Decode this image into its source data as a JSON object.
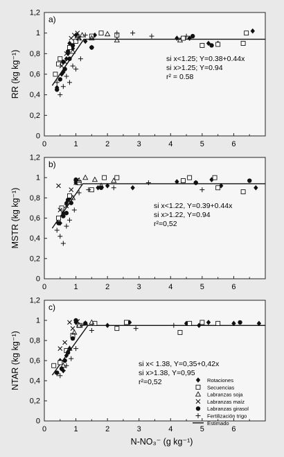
{
  "chart_data": [
    {
      "type": "scatter",
      "panel_label": "a)",
      "ylabel": "RR (kg kg⁻¹)",
      "xlim": [
        0,
        7
      ],
      "ylim": [
        0,
        1.2
      ],
      "x_ticks": [
        0,
        1,
        2,
        3,
        4,
        5,
        6
      ],
      "y_ticks": [
        "0",
        "0,2",
        "0,4",
        "0,6",
        "0,8",
        "1",
        "1,2"
      ],
      "annotation": [
        "si x<1.25; Y=0.38+0.44x",
        "si x>1.25; Y=0.94",
        "r² = 0.58"
      ],
      "fit": {
        "breakpoint": 1.25,
        "intercept": 0.38,
        "slope": 0.44,
        "plateau": 0.94
      },
      "series": [
        {
          "marker": "diamond",
          "points": [
            [
              0.4,
              0.47
            ],
            [
              0.55,
              0.6
            ],
            [
              0.6,
              0.62
            ],
            [
              0.7,
              0.75
            ],
            [
              0.75,
              0.8
            ],
            [
              0.8,
              0.9
            ],
            [
              0.9,
              0.85
            ],
            [
              1.0,
              0.98
            ],
            [
              1.3,
              0.92
            ],
            [
              1.6,
              0.98
            ],
            [
              4.2,
              0.95
            ],
            [
              4.6,
              0.95
            ],
            [
              5.2,
              0.9
            ],
            [
              5.5,
              0.9
            ],
            [
              6.6,
              1.02
            ]
          ]
        },
        {
          "marker": "square",
          "points": [
            [
              0.35,
              0.6
            ],
            [
              0.45,
              0.7
            ],
            [
              0.5,
              0.75
            ],
            [
              0.8,
              0.86
            ],
            [
              1.0,
              0.92
            ],
            [
              1.5,
              0.97
            ],
            [
              1.8,
              1.0
            ],
            [
              2.3,
              0.98
            ],
            [
              4.4,
              0.95
            ],
            [
              5.0,
              0.88
            ],
            [
              5.5,
              0.89
            ],
            [
              6.3,
              0.9
            ],
            [
              6.4,
              1.0
            ]
          ]
        },
        {
          "marker": "triangle",
          "points": [
            [
              0.9,
              0.82
            ],
            [
              1.05,
              0.97
            ],
            [
              1.1,
              0.95
            ],
            [
              1.2,
              0.98
            ],
            [
              1.5,
              0.95
            ],
            [
              2.0,
              0.99
            ],
            [
              2.3,
              0.93
            ],
            [
              4.3,
              0.93
            ]
          ]
        },
        {
          "marker": "cross",
          "points": [
            [
              0.55,
              0.68
            ],
            [
              0.65,
              0.72
            ],
            [
              0.7,
              0.8
            ],
            [
              0.85,
              0.95
            ],
            [
              0.95,
              0.98
            ],
            [
              1.05,
              1.0
            ],
            [
              1.1,
              0.95
            ]
          ]
        },
        {
          "marker": "circle",
          "points": [
            [
              0.4,
              0.45
            ],
            [
              0.5,
              0.55
            ],
            [
              0.6,
              0.72
            ],
            [
              0.65,
              0.65
            ],
            [
              0.75,
              0.82
            ],
            [
              0.8,
              0.75
            ],
            [
              0.9,
              0.88
            ],
            [
              1.5,
              0.86
            ],
            [
              4.7,
              0.97
            ],
            [
              5.3,
              0.88
            ]
          ]
        },
        {
          "marker": "plus",
          "points": [
            [
              0.4,
              0.52
            ],
            [
              0.5,
              0.4
            ],
            [
              0.6,
              0.48
            ],
            [
              0.7,
              0.58
            ],
            [
              0.8,
              0.52
            ],
            [
              0.9,
              0.68
            ],
            [
              1.0,
              0.65
            ],
            [
              1.15,
              0.75
            ],
            [
              1.3,
              0.98
            ],
            [
              1.5,
              0.86
            ],
            [
              2.3,
              1.0
            ],
            [
              2.8,
              1.0
            ],
            [
              3.4,
              0.97
            ],
            [
              4.5,
              0.97
            ]
          ]
        }
      ]
    },
    {
      "type": "scatter",
      "panel_label": "b)",
      "ylabel": "MSTR (kg kg⁻¹)",
      "xlim": [
        0,
        7
      ],
      "ylim": [
        0,
        1.2
      ],
      "x_ticks": [
        0,
        1,
        2,
        3,
        4,
        5,
        6
      ],
      "y_ticks": [
        "0",
        "0,2",
        "0,4",
        "0,6",
        "0,8",
        "1",
        "1,2"
      ],
      "annotation": [
        "si x<1.22, Y=0.39+0.44x",
        "si x>1.22, Y=0.94",
        "r²=0,52"
      ],
      "fit": {
        "breakpoint": 1.22,
        "intercept": 0.39,
        "slope": 0.44,
        "plateau": 0.94
      },
      "series": [
        {
          "marker": "diamond",
          "points": [
            [
              0.5,
              0.55
            ],
            [
              0.6,
              0.65
            ],
            [
              0.7,
              0.75
            ],
            [
              0.8,
              0.8
            ],
            [
              1.0,
              0.95
            ],
            [
              1.7,
              0.9
            ],
            [
              2.0,
              0.92
            ],
            [
              2.8,
              0.9
            ],
            [
              4.2,
              0.96
            ],
            [
              4.8,
              0.95
            ],
            [
              5.3,
              0.98
            ],
            [
              5.6,
              0.92
            ],
            [
              6.7,
              0.9
            ]
          ]
        },
        {
          "marker": "square",
          "points": [
            [
              0.45,
              0.6
            ],
            [
              0.55,
              0.7
            ],
            [
              0.8,
              0.82
            ],
            [
              1.1,
              0.95
            ],
            [
              1.5,
              0.88
            ],
            [
              1.9,
              1.0
            ],
            [
              2.3,
              1.0
            ],
            [
              4.4,
              0.97
            ],
            [
              4.6,
              1.0
            ],
            [
              5.4,
              1.0
            ],
            [
              5.5,
              0.9
            ],
            [
              6.3,
              0.86
            ]
          ]
        },
        {
          "marker": "triangle",
          "points": [
            [
              0.9,
              0.8
            ],
            [
              1.1,
              0.97
            ],
            [
              1.3,
              1.0
            ],
            [
              1.6,
              0.98
            ],
            [
              1.8,
              0.92
            ],
            [
              2.2,
              0.97
            ]
          ]
        },
        {
          "marker": "cross",
          "points": [
            [
              0.45,
              0.92
            ],
            [
              0.5,
              0.68
            ],
            [
              0.7,
              0.72
            ],
            [
              0.85,
              0.88
            ],
            [
              1.0,
              0.95
            ],
            [
              1.05,
              0.98
            ]
          ]
        },
        {
          "marker": "circle",
          "points": [
            [
              0.45,
              0.55
            ],
            [
              0.6,
              0.62
            ],
            [
              0.7,
              0.65
            ],
            [
              0.75,
              0.78
            ],
            [
              0.85,
              0.75
            ],
            [
              1.0,
              0.98
            ],
            [
              1.8,
              0.9
            ],
            [
              4.8,
              0.95
            ],
            [
              6.5,
              0.97
            ]
          ]
        },
        {
          "marker": "plus",
          "points": [
            [
              0.4,
              0.48
            ],
            [
              0.5,
              0.42
            ],
            [
              0.6,
              0.35
            ],
            [
              0.7,
              0.52
            ],
            [
              0.8,
              0.58
            ],
            [
              0.95,
              0.68
            ],
            [
              1.1,
              0.85
            ],
            [
              1.4,
              0.88
            ],
            [
              2.2,
              0.9
            ],
            [
              3.3,
              0.95
            ],
            [
              5.0,
              0.88
            ]
          ]
        }
      ]
    },
    {
      "type": "scatter",
      "panel_label": "c)",
      "ylabel": "NTAR (kg kg⁻¹)",
      "xlabel": "N-NO₃⁻ (g kg⁻¹)",
      "xlim": [
        0,
        7
      ],
      "ylim": [
        0,
        1.2
      ],
      "x_ticks": [
        0,
        1,
        2,
        3,
        4,
        5,
        6
      ],
      "y_ticks": [
        "0",
        "0,2",
        "0,4",
        "0,6",
        "0,8",
        "1",
        "1,2"
      ],
      "annotation": [
        "si x< 1.38, Y=0,35+0,42x",
        "si x>1.38, Y=0,95",
        "r²=0,52"
      ],
      "fit": {
        "breakpoint": 1.38,
        "intercept": 0.35,
        "slope": 0.42,
        "plateau": 0.95
      },
      "legend": [
        "Rotaciones",
        "Secuencias",
        "Labranzas soja",
        "Labranzas maíz",
        "Labranzas girasol",
        "Fertilización trigo",
        "Estimado"
      ],
      "series": [
        {
          "name": "Rotaciones",
          "marker": "diamond",
          "points": [
            [
              0.5,
              0.6
            ],
            [
              0.6,
              0.5
            ],
            [
              0.7,
              0.65
            ],
            [
              0.8,
              0.72
            ],
            [
              1.0,
              0.98
            ],
            [
              1.6,
              0.97
            ],
            [
              2.0,
              0.95
            ],
            [
              2.7,
              0.98
            ],
            [
              4.5,
              0.97
            ],
            [
              4.9,
              0.95
            ],
            [
              5.2,
              0.98
            ],
            [
              6.0,
              0.97
            ],
            [
              6.8,
              0.97
            ]
          ]
        },
        {
          "name": "Secuencias",
          "marker": "square",
          "points": [
            [
              0.3,
              0.55
            ],
            [
              0.5,
              0.58
            ],
            [
              0.7,
              0.7
            ],
            [
              0.9,
              0.85
            ],
            [
              1.1,
              0.95
            ],
            [
              1.6,
              0.97
            ],
            [
              2.3,
              0.92
            ],
            [
              2.6,
              0.98
            ],
            [
              4.3,
              0.88
            ],
            [
              4.6,
              0.97
            ],
            [
              5.0,
              0.98
            ],
            [
              5.5,
              0.97
            ]
          ]
        },
        {
          "name": "Labranzas soja",
          "marker": "triangle",
          "points": [
            [
              0.6,
              0.55
            ],
            [
              0.8,
              0.72
            ],
            [
              0.95,
              0.88
            ],
            [
              1.1,
              0.95
            ],
            [
              1.3,
              0.97
            ],
            [
              1.5,
              0.98
            ]
          ]
        },
        {
          "name": "Labranzas maíz",
          "marker": "cross",
          "points": [
            [
              0.5,
              0.72
            ],
            [
              0.65,
              0.78
            ],
            [
              0.8,
              0.98
            ],
            [
              0.9,
              0.92
            ],
            [
              1.05,
              0.99
            ]
          ]
        },
        {
          "name": "Labranzas girasol",
          "marker": "circle",
          "points": [
            [
              0.4,
              0.48
            ],
            [
              0.55,
              0.52
            ],
            [
              0.65,
              0.6
            ],
            [
              0.75,
              0.68
            ],
            [
              0.9,
              0.82
            ],
            [
              1.0,
              1.0
            ],
            [
              1.3,
              0.97
            ],
            [
              6.2,
              0.98
            ]
          ]
        },
        {
          "name": "Fertilización trigo",
          "marker": "plus",
          "points": [
            [
              0.4,
              0.47
            ],
            [
              0.5,
              0.45
            ],
            [
              0.6,
              0.5
            ],
            [
              0.7,
              0.55
            ],
            [
              0.85,
              0.62
            ],
            [
              1.0,
              0.72
            ],
            [
              1.2,
              0.95
            ],
            [
              1.5,
              0.9
            ],
            [
              2.9,
              0.92
            ],
            [
              4.1,
              0.95
            ]
          ]
        }
      ]
    }
  ]
}
